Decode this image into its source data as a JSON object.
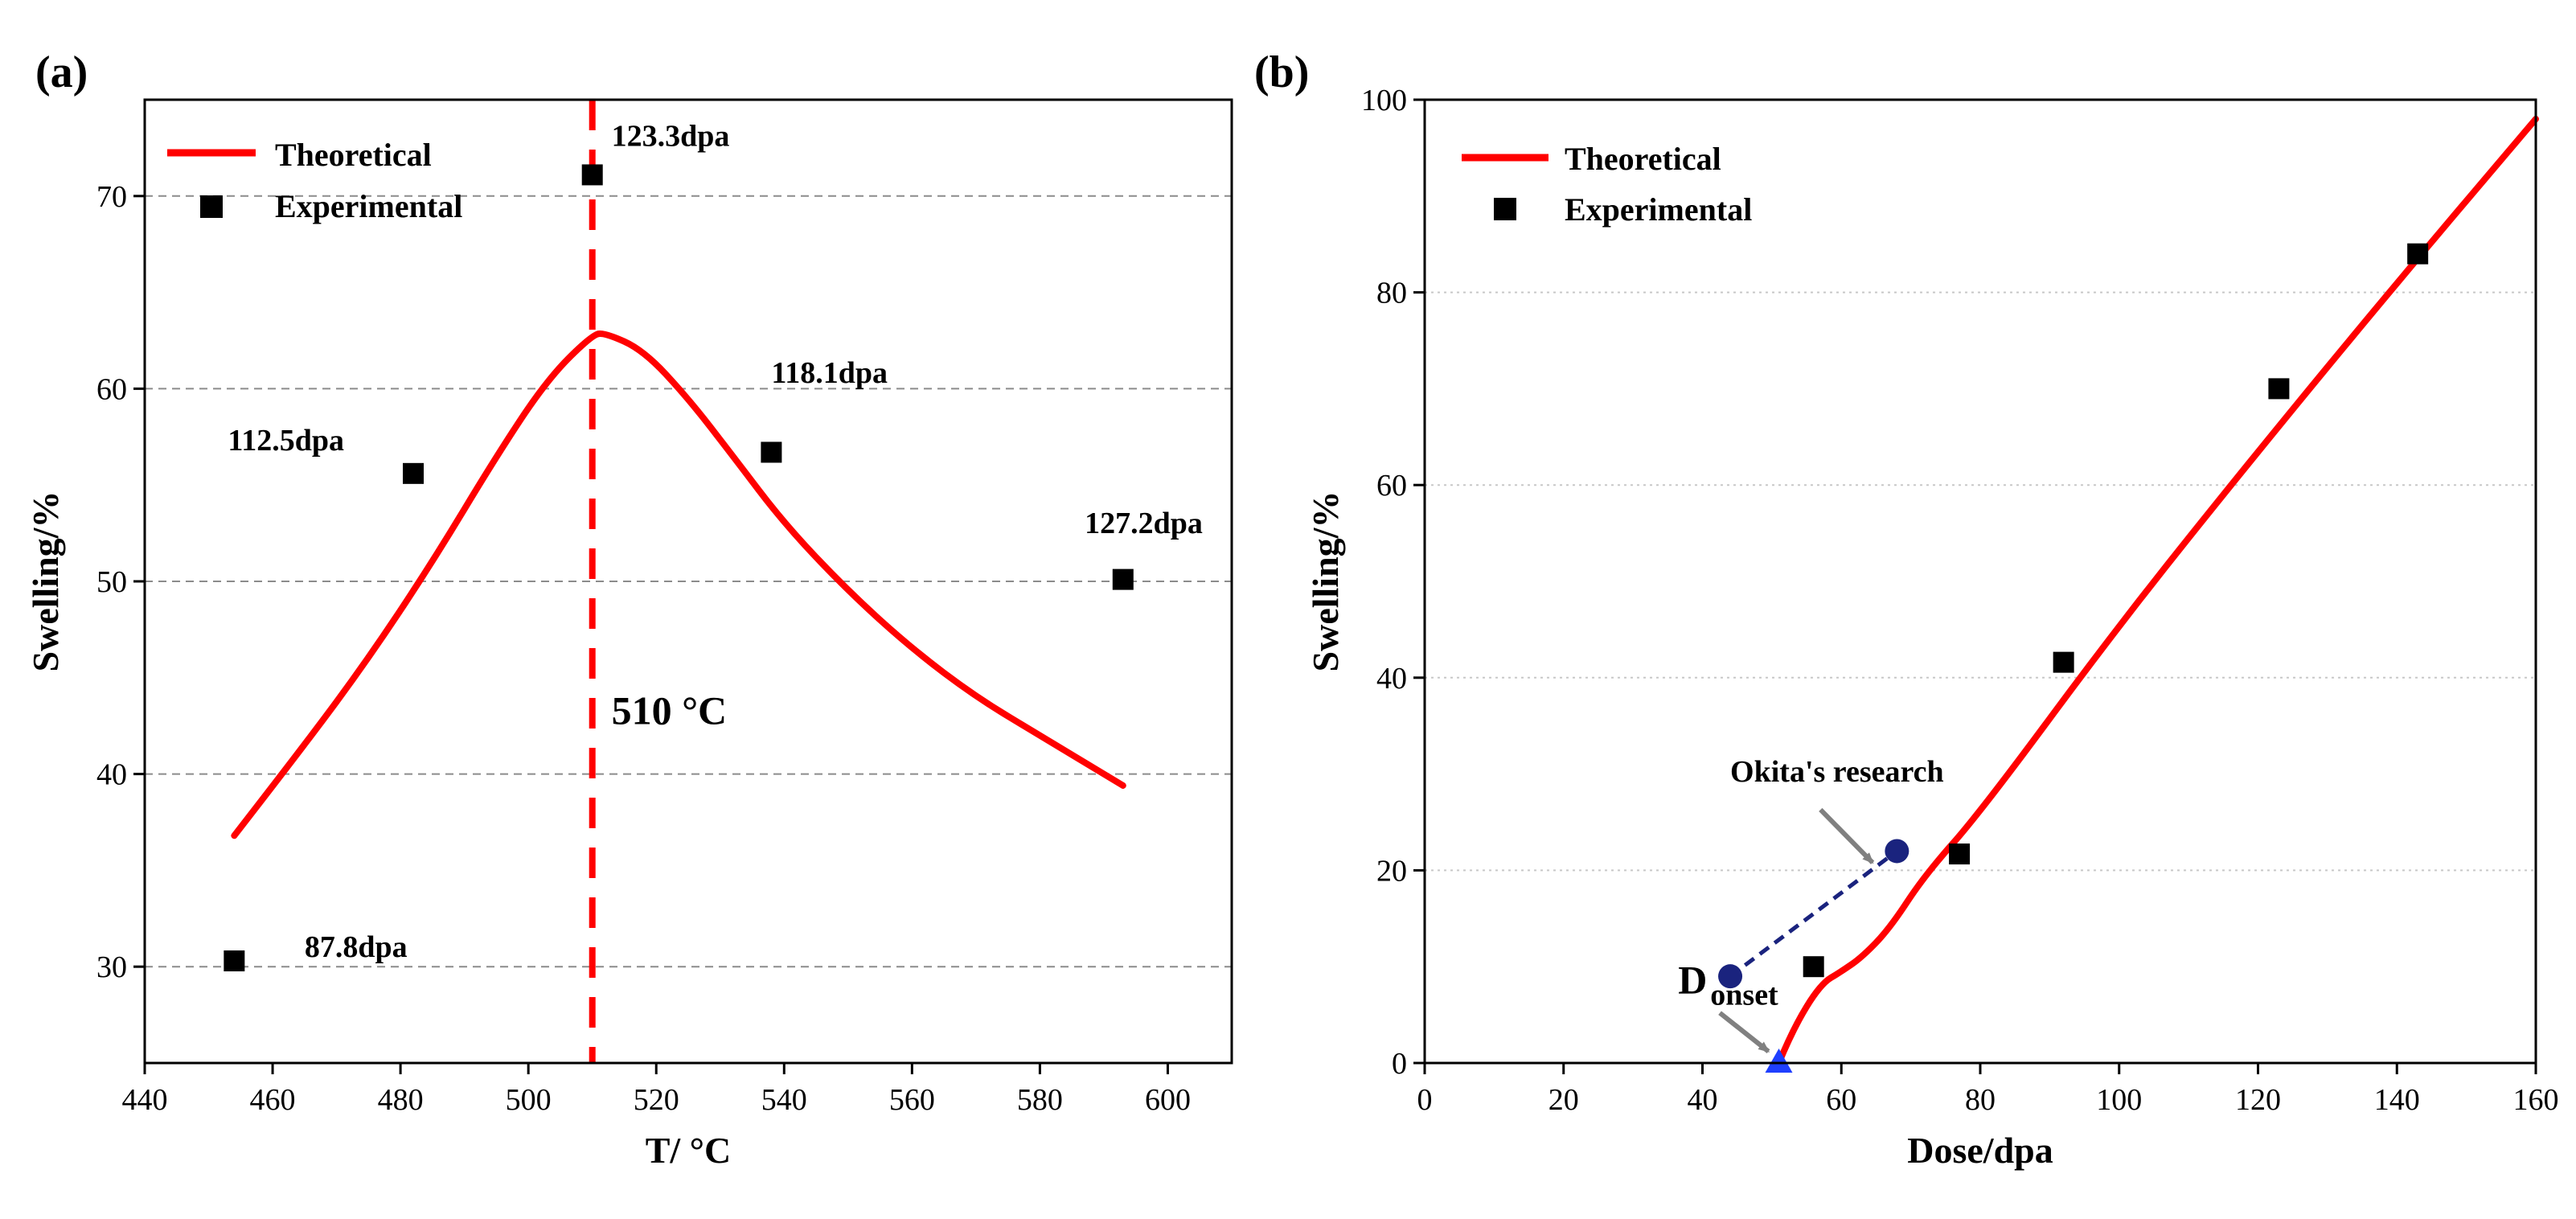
{
  "chart_data": [
    {
      "panel_label": "(a)",
      "type": "line",
      "xlabel": "T/  °C",
      "ylabel": "Swelling/%",
      "xlim": [
        440,
        610
      ],
      "ylim": [
        25,
        75
      ],
      "xticks": [
        440,
        460,
        480,
        500,
        520,
        540,
        560,
        580,
        600
      ],
      "yticks": [
        30,
        40,
        50,
        60,
        70
      ],
      "grid": "horizontal dashed",
      "legend_position": "top-left",
      "series": [
        {
          "name": "Theoretical",
          "kind": "line",
          "color": "#ff0000",
          "x": [
            454,
            465,
            475,
            485,
            495,
            503,
            510,
            512,
            518,
            525,
            532,
            540,
            550,
            560,
            570,
            580,
            593
          ],
          "y": [
            36.8,
            41.5,
            46,
            51,
            56.5,
            60.5,
            62.8,
            62.9,
            62,
            59.5,
            56.5,
            53,
            49.5,
            46.5,
            44,
            42,
            39.4
          ]
        },
        {
          "name": "Experimental",
          "kind": "scatter",
          "marker": "square",
          "color": "#000000",
          "x": [
            454,
            482,
            510,
            538,
            593
          ],
          "y": [
            30.3,
            55.6,
            71.1,
            56.7,
            50.1
          ]
        }
      ],
      "vertical_reference": {
        "x": 510,
        "color": "#ff0000",
        "style": "dashed"
      },
      "annotations": [
        {
          "text": "123.3dpa",
          "x": 513,
          "y": 72.6
        },
        {
          "text": "118.1dpa",
          "x": 538,
          "y": 60.3
        },
        {
          "text": "112.5dpa",
          "x": 453,
          "y": 56.8
        },
        {
          "text": "127.2dpa",
          "x": 587,
          "y": 52.5
        },
        {
          "text": "87.8dpa",
          "x": 465,
          "y": 30.5
        },
        {
          "text": "510 °C",
          "x": 513,
          "y": 42.6
        }
      ]
    },
    {
      "panel_label": "(b)",
      "type": "line",
      "xlabel": "Dose/dpa",
      "ylabel": "Swelling/%",
      "xlim": [
        0,
        160
      ],
      "ylim": [
        0,
        100
      ],
      "xticks": [
        0,
        20,
        40,
        60,
        80,
        100,
        120,
        140,
        160
      ],
      "yticks": [
        0,
        20,
        40,
        60,
        80,
        100
      ],
      "grid": "horizontal dotted",
      "legend_position": "top-left",
      "series": [
        {
          "name": "Theoretical",
          "kind": "line",
          "color": "#ff0000",
          "x": [
            51,
            53,
            57,
            60,
            63,
            67,
            72,
            80,
            100,
            120,
            140,
            160
          ],
          "y": [
            0,
            3.5,
            8.2,
            9.5,
            11,
            14,
            19.5,
            26,
            45.5,
            63.5,
            81,
            98
          ]
        },
        {
          "name": "Experimental",
          "kind": "scatter",
          "marker": "square",
          "color": "#000000",
          "x": [
            56,
            77,
            92,
            123,
            143
          ],
          "y": [
            10,
            21.7,
            41.6,
            70,
            84
          ]
        },
        {
          "name": "Okita's research",
          "kind": "dashed-line-with-points",
          "marker": "circle",
          "color": "#1a237e",
          "x": [
            44,
            68
          ],
          "y": [
            9,
            22
          ]
        }
      ],
      "onset_point": {
        "x": 51,
        "y": 0,
        "marker": "triangle",
        "color": "#1f3fff"
      },
      "annotations": [
        {
          "text": "Okita's research",
          "x": 44,
          "y": 29.2
        },
        {
          "text": "D",
          "subscript": "onset",
          "x": 36.5,
          "y": 7.2
        }
      ]
    }
  ]
}
